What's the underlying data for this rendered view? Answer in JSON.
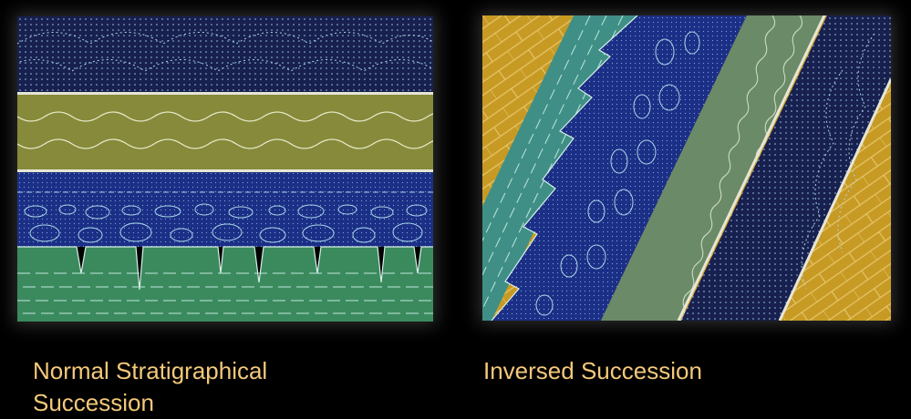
{
  "captions": {
    "normal": "Normal Stratigraphical Succession",
    "inversed": "Inversed Succession"
  },
  "colors": {
    "background": "#000000",
    "caption": "#f4c97a",
    "dotted_navy": "#17204f",
    "olive": "#868a3a",
    "deep_blue": "#1c2f86",
    "green": "#3b8a5e",
    "teal": "#3f8f86",
    "grey_green": "#6b8a67",
    "brick_yellow": "#c79a24",
    "pattern_line": "#a9d6e6"
  }
}
